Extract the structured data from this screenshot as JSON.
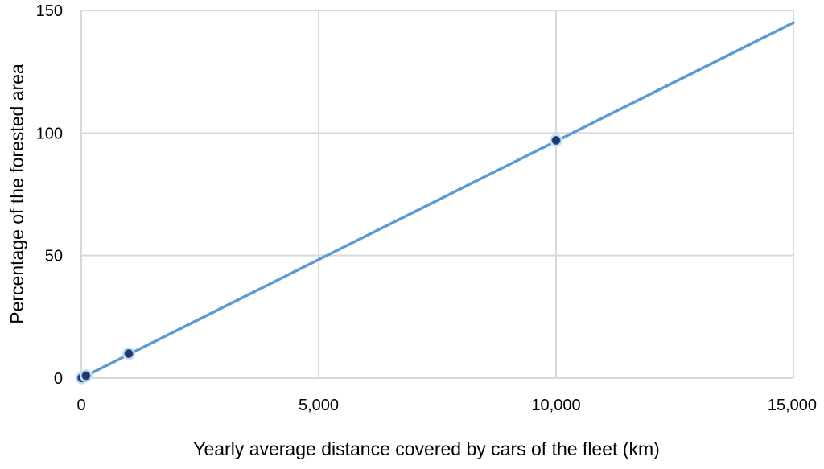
{
  "chart_data": {
    "type": "line",
    "title": "",
    "xlabel": "Yearly average distance covered by cars of the fleet (km)",
    "ylabel": "Percentage of the forested area",
    "xlim": [
      0,
      15000
    ],
    "ylim": [
      0,
      150
    ],
    "x_ticks": [
      0,
      5000,
      10000,
      15000
    ],
    "x_tick_labels": [
      "0",
      "5,000",
      "10,000",
      "15,000"
    ],
    "y_ticks": [
      0,
      50,
      100,
      150
    ],
    "y_tick_labels": [
      "0",
      "50",
      "100",
      "150"
    ],
    "grid": true,
    "legend": "none",
    "series": [
      {
        "line": {
          "x": [
            0,
            15000
          ],
          "y": [
            0,
            145
          ]
        },
        "markers": {
          "x": [
            10,
            100,
            1000,
            10000
          ],
          "y": [
            0.1,
            1,
            10,
            97
          ]
        },
        "line_color": "#5B9BD5",
        "marker_color": "#1F3864"
      }
    ]
  }
}
